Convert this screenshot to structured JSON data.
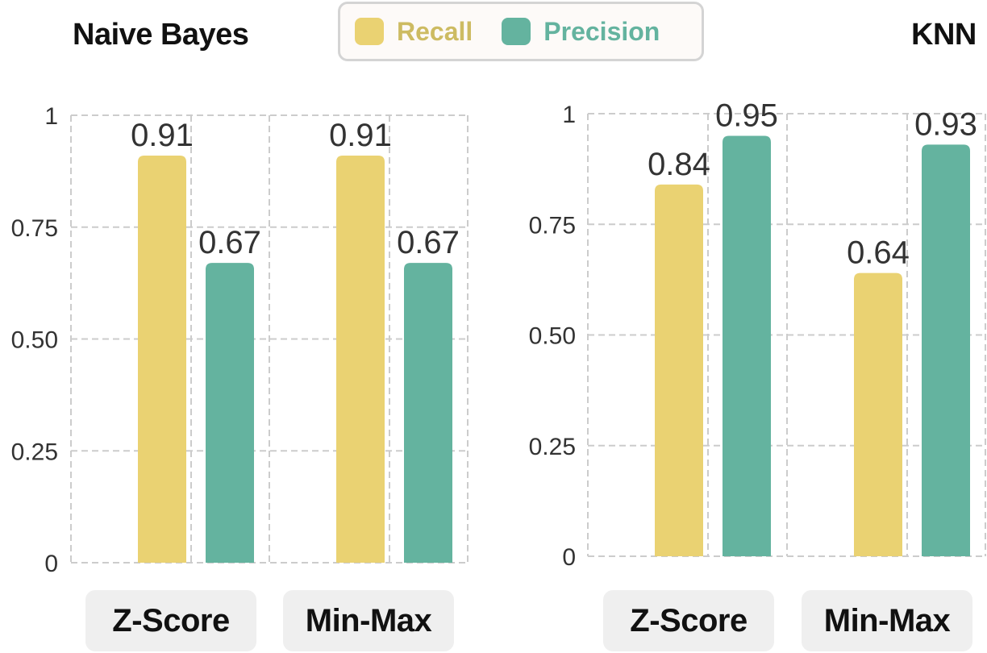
{
  "legend": {
    "items": [
      {
        "label": "Recall",
        "color": "#ead272"
      },
      {
        "label": "Precision",
        "color": "#64b39f"
      }
    ]
  },
  "chart_data": [
    {
      "type": "bar",
      "title": "Naive Bayes",
      "categories": [
        "Z-Score",
        "Min-Max"
      ],
      "series": [
        {
          "name": "Recall",
          "values": [
            0.91,
            0.91
          ]
        },
        {
          "name": "Precision",
          "values": [
            0.67,
            0.67
          ]
        }
      ],
      "ylim": [
        0,
        1
      ],
      "yticks": [
        "0",
        "0.25",
        "0.50",
        "0.75",
        "1"
      ],
      "grid": true
    },
    {
      "type": "bar",
      "title": "KNN",
      "categories": [
        "Z-Score",
        "Min-Max"
      ],
      "series": [
        {
          "name": "Recall",
          "values": [
            0.84,
            0.64
          ]
        },
        {
          "name": "Precision",
          "values": [
            0.95,
            0.93
          ]
        }
      ],
      "ylim": [
        0,
        1
      ],
      "yticks": [
        "0",
        "0.25",
        "0.50",
        "0.75",
        "1"
      ],
      "grid": true
    }
  ]
}
